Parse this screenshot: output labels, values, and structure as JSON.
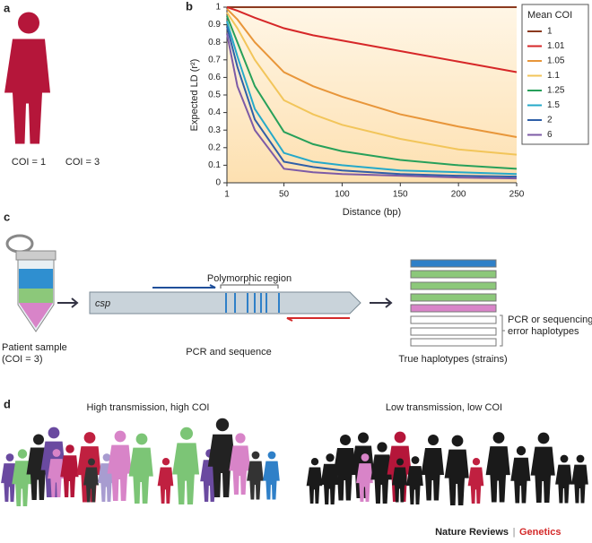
{
  "panel_a": {
    "label": "a",
    "left_caption": "COI = 1",
    "right_caption": "COI = 3"
  },
  "chart_data": {
    "type": "line",
    "label": "b",
    "xlabel": "Distance (bp)",
    "ylabel": "Expected LD (r²)",
    "legend_title": "Mean COI",
    "legend": "right",
    "x": [
      1,
      10,
      25,
      50,
      75,
      100,
      150,
      200,
      250
    ],
    "xlim": [
      1,
      250
    ],
    "xticks": [
      1,
      50,
      100,
      150,
      200,
      250
    ],
    "ylim": [
      0,
      1
    ],
    "yticks": [
      0,
      0.1,
      0.2,
      0.3,
      0.4,
      0.5,
      0.6,
      0.7,
      0.8,
      0.9,
      1
    ],
    "series": [
      {
        "name": "1",
        "color": "#8b3a1f",
        "values": [
          1,
          1,
          1,
          1,
          1,
          1,
          1,
          1,
          1
        ]
      },
      {
        "name": "1.01",
        "color": "#d62728",
        "values": [
          1,
          0.98,
          0.94,
          0.88,
          0.84,
          0.81,
          0.75,
          0.69,
          0.63
        ]
      },
      {
        "name": "1.05",
        "color": "#e8963a",
        "values": [
          0.99,
          0.93,
          0.8,
          0.63,
          0.55,
          0.49,
          0.39,
          0.32,
          0.26
        ]
      },
      {
        "name": "1.1",
        "color": "#f2c55a",
        "values": [
          0.97,
          0.88,
          0.7,
          0.47,
          0.39,
          0.33,
          0.25,
          0.19,
          0.16
        ]
      },
      {
        "name": "1.25",
        "color": "#27a05a",
        "values": [
          0.95,
          0.8,
          0.55,
          0.29,
          0.22,
          0.18,
          0.13,
          0.1,
          0.08
        ]
      },
      {
        "name": "1.5",
        "color": "#25a9c9",
        "values": [
          0.92,
          0.72,
          0.42,
          0.17,
          0.12,
          0.1,
          0.07,
          0.06,
          0.05
        ]
      },
      {
        "name": "2",
        "color": "#2f5fa8",
        "values": [
          0.89,
          0.66,
          0.36,
          0.12,
          0.09,
          0.07,
          0.05,
          0.04,
          0.035
        ]
      },
      {
        "name": "6",
        "color": "#7d5ba6",
        "values": [
          0.85,
          0.55,
          0.3,
          0.08,
          0.06,
          0.05,
          0.04,
          0.03,
          0.025
        ]
      }
    ]
  },
  "panel_c": {
    "label": "c",
    "sample": "Patient sample",
    "sample_coi": "(COI = 3)",
    "gene": "csp",
    "region": "Polymorphic region",
    "step": "PCR and sequence",
    "error": [
      "PCR or sequencing",
      "error haplotypes"
    ],
    "haplotypes": "True haplotypes (strains)"
  },
  "panel_d": {
    "label": "d",
    "left": "High transmission, high COI",
    "right": "Low transmission, low COI"
  },
  "footer": {
    "journal": "Nature Reviews",
    "separator": "|",
    "section": "Genetics"
  }
}
